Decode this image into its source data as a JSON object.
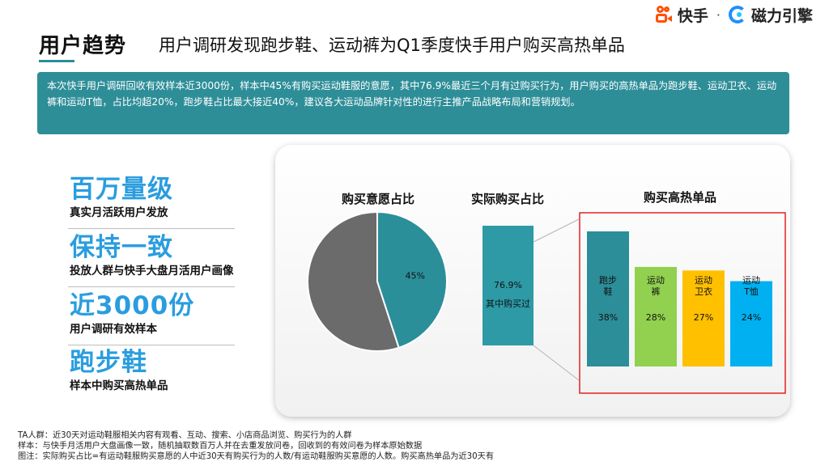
{
  "header": {
    "title": "用户趋势",
    "subtitle": "用户调研发现跑步鞋、运动裤为Q1季度快手用户购买高热单品",
    "brand_left": "快手",
    "brand_separator": "·",
    "brand_right": "磁力引擎"
  },
  "summary": {
    "text": "本次快手用户调研回收有效样本近3000份，样本中45%有购买运动鞋服的意愿，其中76.9%最近三个月有过购买行为，用户购买的高热单品为跑步鞋、运动卫衣、运动裤和运动T恤，占比均超20%，跑步鞋占比最大接近40%，建议各大运动品牌针对性的进行主推产品战略布局和营销规划。"
  },
  "highlights": [
    {
      "big": "百万量级",
      "small": "真实月活跃用户发放"
    },
    {
      "big": "保持一致",
      "small": "投放人群与快手大盘月活用户画像"
    },
    {
      "big": "近3000份",
      "small": "用户调研有效样本"
    },
    {
      "big": "跑步鞋",
      "small": "样本中购买高热单品"
    }
  ],
  "chart_data": [
    {
      "type": "pie",
      "title": "购买意愿占比",
      "slices": [
        {
          "label": "45%",
          "value": 45,
          "color": "#2b8f9a"
        },
        {
          "label": "",
          "value": 55,
          "color": "#6b6b6b"
        }
      ]
    },
    {
      "type": "bar",
      "title": "实际购买占比",
      "categories": [
        "其中购买过"
      ],
      "values": [
        76.9
      ],
      "value_labels": [
        "76.9%"
      ],
      "color": "#2d9aa6"
    },
    {
      "type": "bar",
      "title": "购买高热单品",
      "categories": [
        "跑步\n鞋",
        "运动\n裤",
        "运动\n卫衣",
        "运动\nT恤"
      ],
      "values": [
        38,
        28,
        27,
        24
      ],
      "value_labels": [
        "38%",
        "28%",
        "27%",
        "24%"
      ],
      "colors": [
        "#2c8e99",
        "#92d050",
        "#ffc000",
        "#00b0f0"
      ]
    }
  ],
  "footnotes": [
    "TA人群：近30天对运动鞋服相关内容有观看、互动、搜索、小店商品浏览、购买行为的人群",
    "样本：与快手月活用户大盘画像一致，随机抽取数百万人并在去重发放问卷，回收到的有效问卷为样本原始数据",
    "图注：实际购买占比=有运动鞋服购买意愿的人中近30天有购买行为的人数/有运动鞋服购买意愿的人数。购买高热单品为近30天有"
  ]
}
